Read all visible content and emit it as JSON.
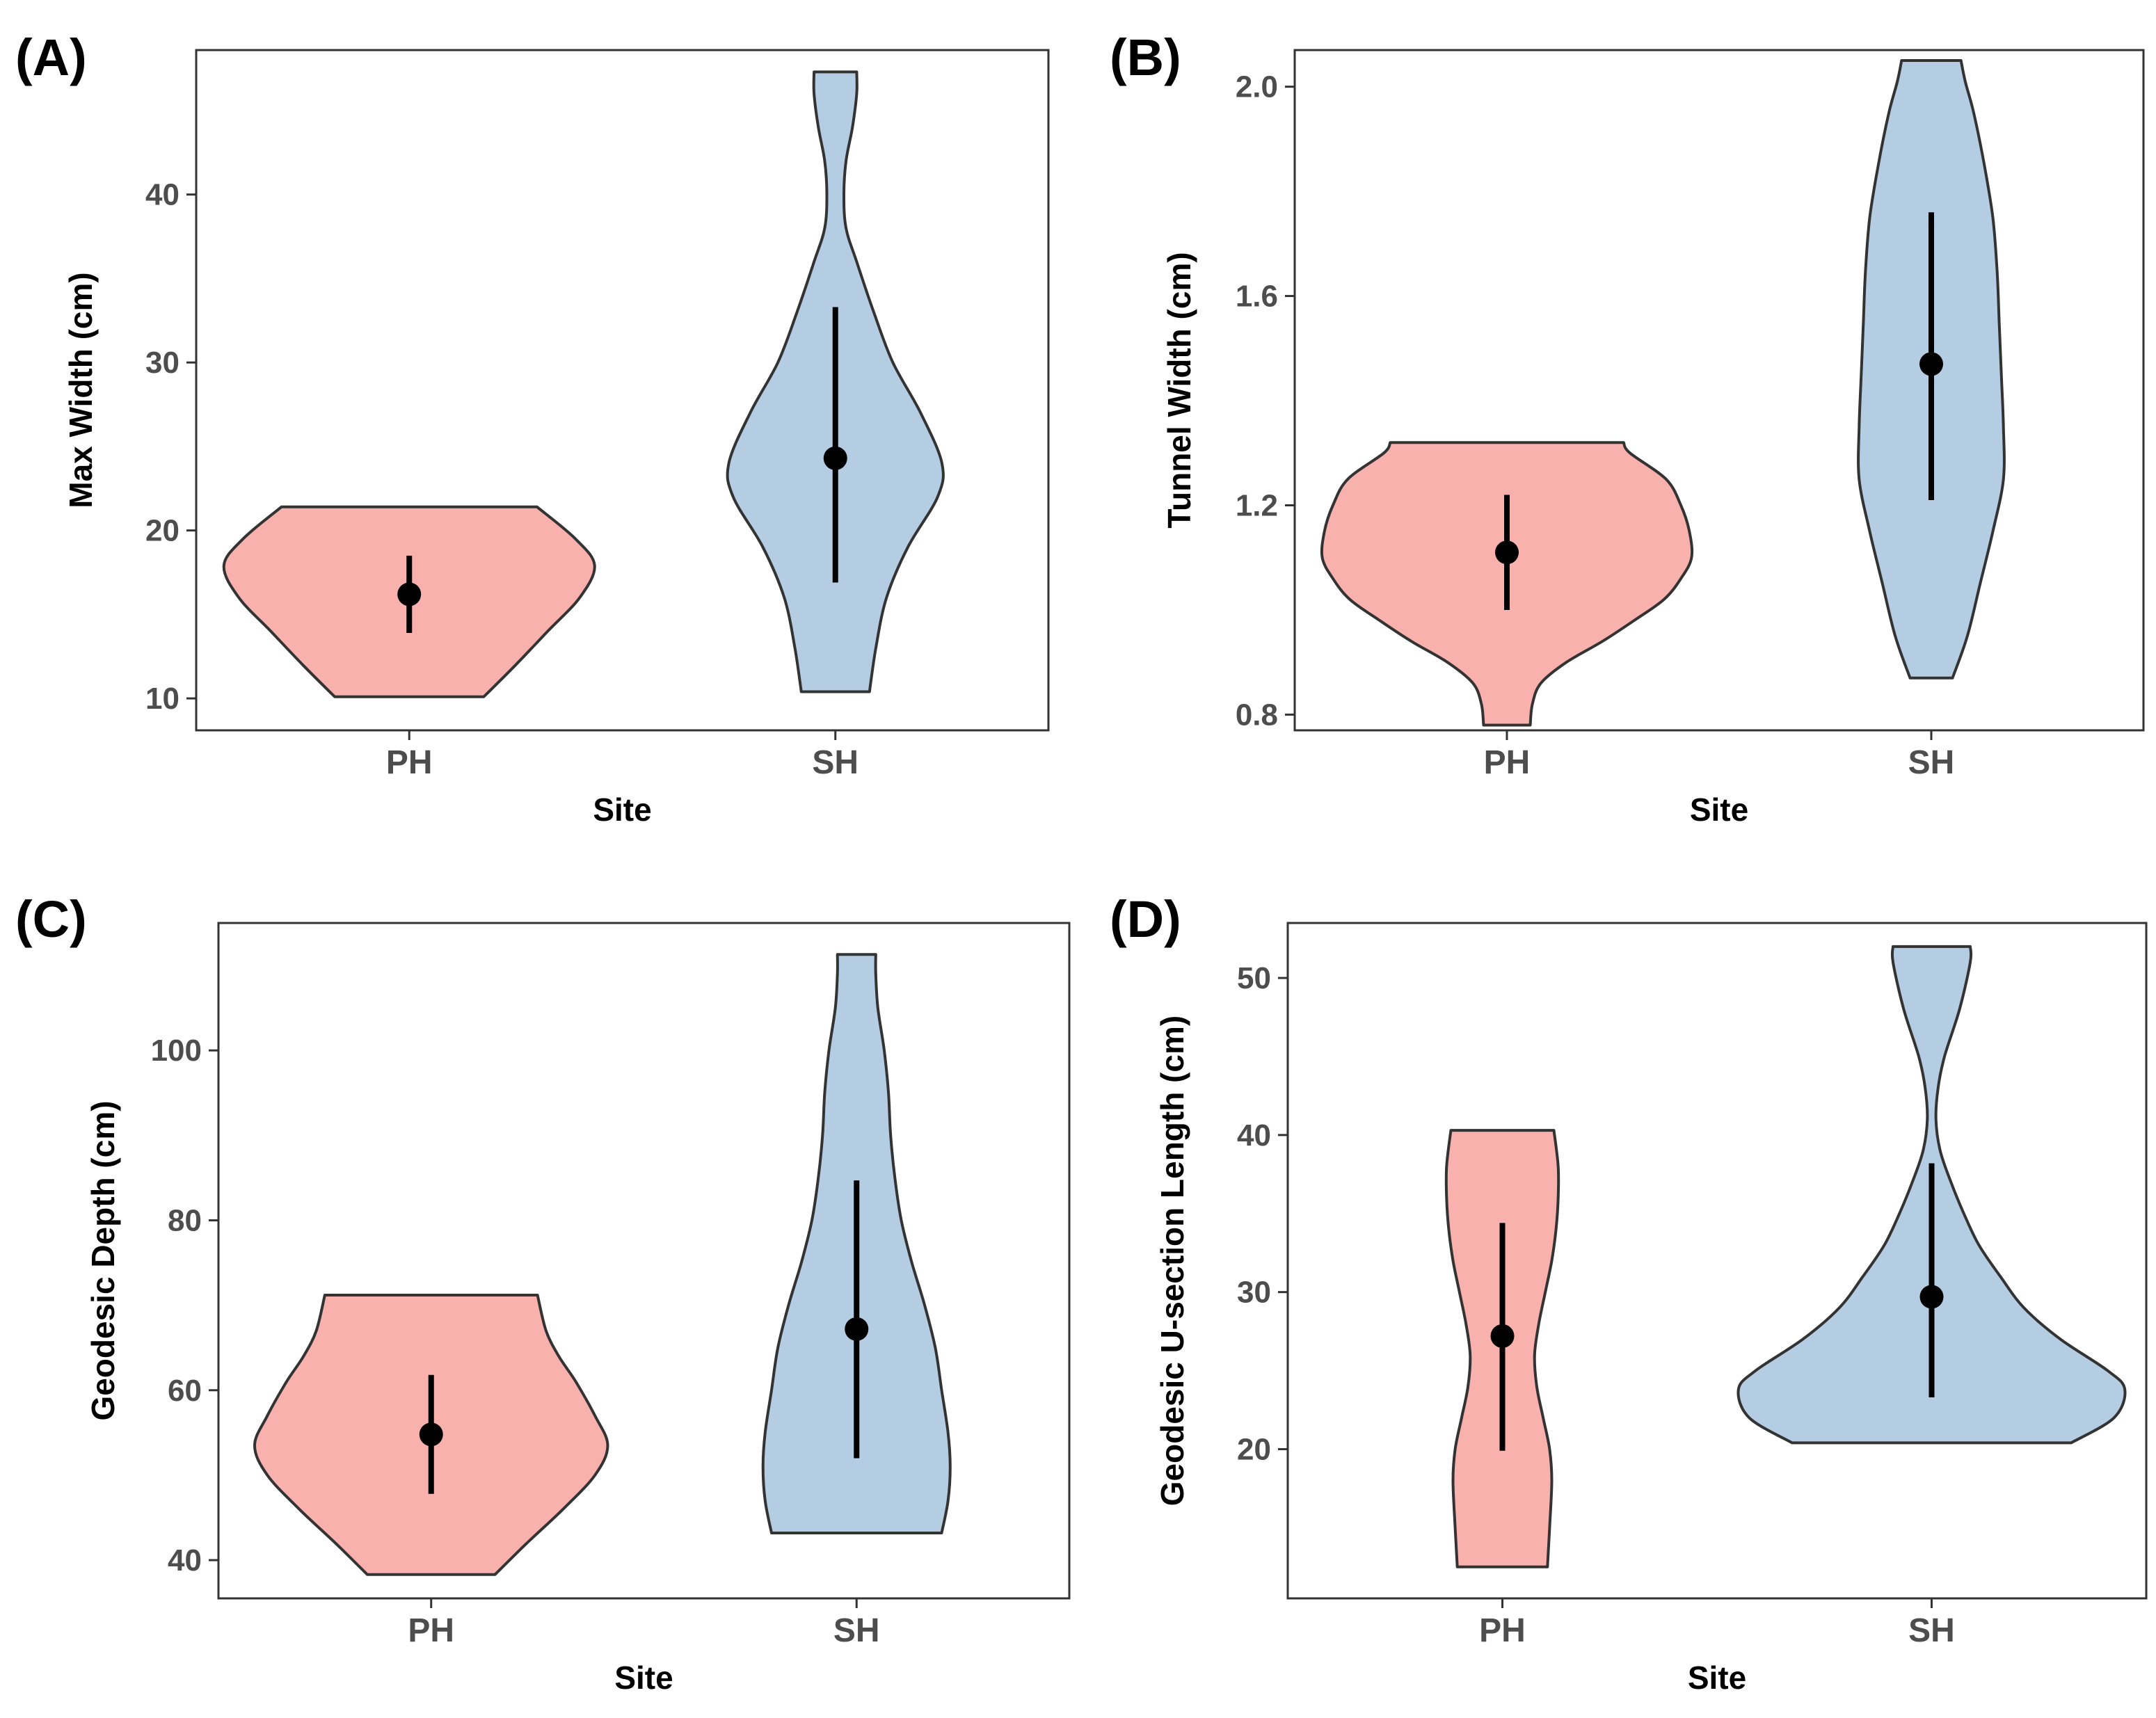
{
  "colors": {
    "PH": "#f8b1ad",
    "SH": "#b4cde3",
    "outline": "#333333",
    "point": "#000000"
  },
  "panels": [
    {
      "tag": "(A)",
      "chart_data": {
        "type": "violin",
        "xlabel": "Site",
        "ylabel": "Max Width (cm)",
        "categories": [
          "PH",
          "SH"
        ],
        "ylim": [
          8.1,
          48.6
        ],
        "yticks": [
          10,
          20,
          30,
          40
        ],
        "series": [
          {
            "category": "PH",
            "mean": 16.2,
            "ci": [
              13.9,
              18.5
            ],
            "density": [
              [
                10.1,
                0.35
              ],
              [
                12,
                0.5
              ],
              [
                14,
                0.65
              ],
              [
                16,
                0.8
              ],
              [
                17.9,
                0.87
              ],
              [
                19.5,
                0.78
              ],
              [
                21.4,
                0.6
              ]
            ]
          },
          {
            "category": "SH",
            "mean": 24.3,
            "ci": [
              16.9,
              33.3
            ],
            "density": [
              [
                10.4,
                0.16
              ],
              [
                13,
                0.19
              ],
              [
                16,
                0.24
              ],
              [
                19,
                0.34
              ],
              [
                22,
                0.48
              ],
              [
                24,
                0.5
              ],
              [
                27,
                0.4
              ],
              [
                30,
                0.27
              ],
              [
                33,
                0.18
              ],
              [
                36,
                0.1
              ],
              [
                38,
                0.05
              ],
              [
                40,
                0.04
              ],
              [
                42,
                0.05
              ],
              [
                44,
                0.08
              ],
              [
                46,
                0.1
              ],
              [
                47.3,
                0.1
              ]
            ]
          }
        ]
      }
    },
    {
      "tag": "(B)",
      "chart_data": {
        "type": "violin",
        "xlabel": "Site",
        "ylabel": "Tunnel Width (cm)",
        "categories": [
          "PH",
          "SH"
        ],
        "ylim": [
          0.77,
          2.07
        ],
        "yticks": [
          0.8,
          1.2,
          1.6,
          2.0
        ],
        "series": [
          {
            "category": "PH",
            "mean": 1.11,
            "ci": [
              1.0,
              1.22
            ],
            "density": [
              [
                0.78,
                0.11
              ],
              [
                0.82,
                0.12
              ],
              [
                0.86,
                0.16
              ],
              [
                0.9,
                0.28
              ],
              [
                0.94,
                0.45
              ],
              [
                0.98,
                0.6
              ],
              [
                1.02,
                0.74
              ],
              [
                1.06,
                0.82
              ],
              [
                1.1,
                0.87
              ],
              [
                1.15,
                0.86
              ],
              [
                1.2,
                0.82
              ],
              [
                1.25,
                0.75
              ],
              [
                1.3,
                0.58
              ],
              [
                1.32,
                0.55
              ]
            ]
          },
          {
            "category": "SH",
            "mean": 1.47,
            "ci": [
              1.21,
              1.76
            ],
            "density": [
              [
                0.87,
                0.1
              ],
              [
                0.95,
                0.17
              ],
              [
                1.05,
                0.23
              ],
              [
                1.15,
                0.29
              ],
              [
                1.25,
                0.34
              ],
              [
                1.35,
                0.34
              ],
              [
                1.45,
                0.33
              ],
              [
                1.55,
                0.32
              ],
              [
                1.65,
                0.31
              ],
              [
                1.75,
                0.29
              ],
              [
                1.85,
                0.25
              ],
              [
                1.95,
                0.2
              ],
              [
                2.01,
                0.16
              ],
              [
                2.05,
                0.14
              ]
            ]
          }
        ]
      }
    },
    {
      "tag": "(C)",
      "chart_data": {
        "type": "violin",
        "xlabel": "Site",
        "ylabel": "Geodesic Depth (cm)",
        "categories": [
          "PH",
          "SH"
        ],
        "ylim": [
          35.5,
          115
        ],
        "yticks": [
          40,
          60,
          80,
          100
        ],
        "series": [
          {
            "category": "PH",
            "mean": 54.8,
            "ci": [
              47.8,
              61.8
            ],
            "density": [
              [
                38.3,
                0.3
              ],
              [
                42,
                0.45
              ],
              [
                46,
                0.62
              ],
              [
                50,
                0.77
              ],
              [
                53.5,
                0.83
              ],
              [
                57,
                0.77
              ],
              [
                61,
                0.68
              ],
              [
                64,
                0.6
              ],
              [
                67,
                0.54
              ],
              [
                71.2,
                0.5
              ]
            ]
          },
          {
            "category": "SH",
            "mean": 67.2,
            "ci": [
              52.0,
              84.7
            ],
            "density": [
              [
                43.2,
                0.4
              ],
              [
                47,
                0.43
              ],
              [
                51,
                0.44
              ],
              [
                55,
                0.43
              ],
              [
                60,
                0.4
              ],
              [
                65,
                0.37
              ],
              [
                70,
                0.32
              ],
              [
                75,
                0.26
              ],
              [
                80,
                0.21
              ],
              [
                85,
                0.18
              ],
              [
                90,
                0.16
              ],
              [
                95,
                0.15
              ],
              [
                100,
                0.13
              ],
              [
                105,
                0.1
              ],
              [
                109,
                0.09
              ],
              [
                111.3,
                0.09
              ]
            ]
          }
        ]
      }
    },
    {
      "tag": "(D)",
      "chart_data": {
        "type": "violin",
        "xlabel": "Site",
        "ylabel": "Geodesic U-section Length (cm)",
        "categories": [
          "PH",
          "SH"
        ],
        "ylim": [
          10.5,
          53.5
        ],
        "yticks": [
          20,
          30,
          40,
          50
        ],
        "series": [
          {
            "category": "PH",
            "mean": 27.2,
            "ci": [
              19.9,
              34.4
            ],
            "density": [
              [
                12.5,
                0.21
              ],
              [
                15,
                0.22
              ],
              [
                18,
                0.23
              ],
              [
                20,
                0.22
              ],
              [
                22,
                0.19
              ],
              [
                24,
                0.16
              ],
              [
                26,
                0.15
              ],
              [
                28,
                0.17
              ],
              [
                30,
                0.2
              ],
              [
                32,
                0.23
              ],
              [
                34,
                0.25
              ],
              [
                36,
                0.26
              ],
              [
                38,
                0.26
              ],
              [
                40.3,
                0.24
              ]
            ]
          },
          {
            "category": "SH",
            "mean": 29.7,
            "ci": [
              23.3,
              38.2
            ],
            "density": [
              [
                20.4,
                0.65
              ],
              [
                22,
                0.85
              ],
              [
                23.8,
                0.9
              ],
              [
                25,
                0.82
              ],
              [
                27,
                0.6
              ],
              [
                29,
                0.43
              ],
              [
                31,
                0.32
              ],
              [
                33,
                0.22
              ],
              [
                35,
                0.15
              ],
              [
                37,
                0.09
              ],
              [
                39,
                0.04
              ],
              [
                41,
                0.02
              ],
              [
                43,
                0.03
              ],
              [
                45,
                0.06
              ],
              [
                48,
                0.13
              ],
              [
                51,
                0.18
              ],
              [
                52,
                0.18
              ]
            ]
          }
        ]
      }
    }
  ]
}
